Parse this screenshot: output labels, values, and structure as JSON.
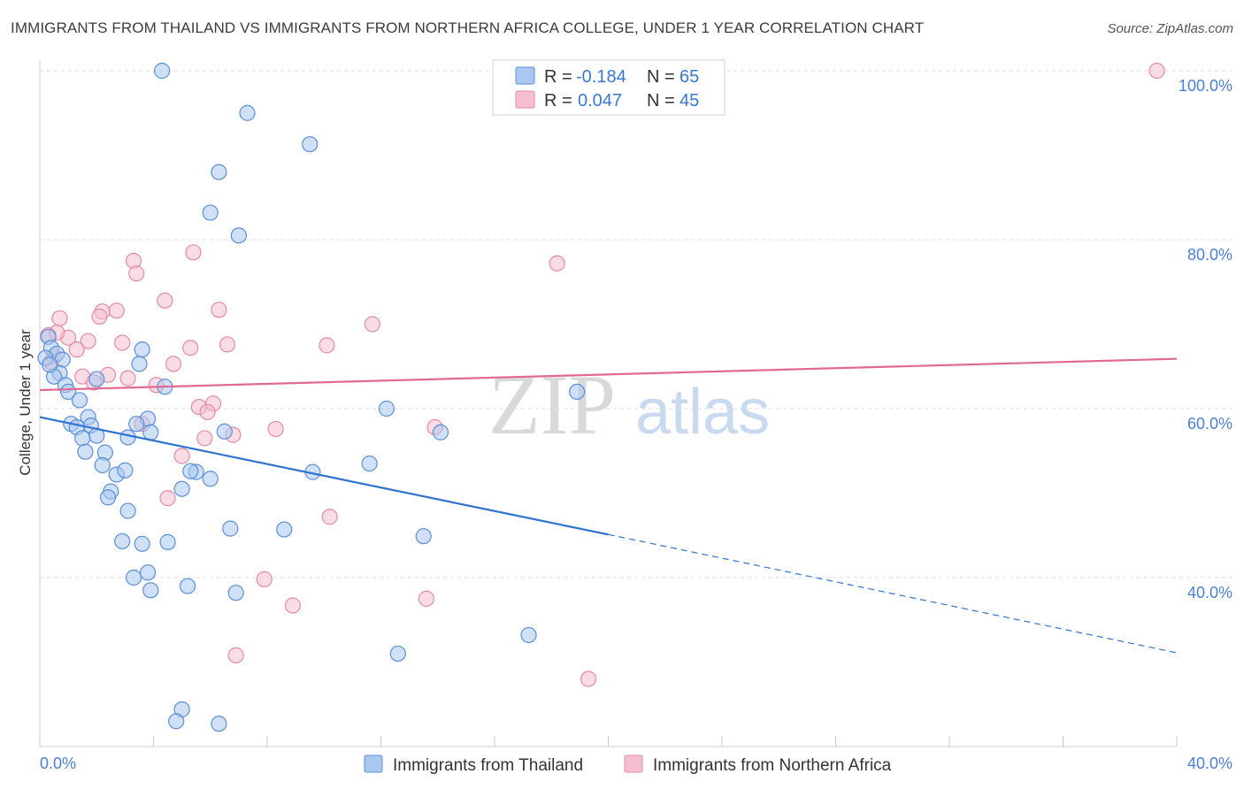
{
  "title": "IMMIGRANTS FROM THAILAND VS IMMIGRANTS FROM NORTHERN AFRICA COLLEGE, UNDER 1 YEAR CORRELATION CHART",
  "source": "Source: ZipAtlas.com",
  "watermark": {
    "zip": "ZIP",
    "atlas": "atlas"
  },
  "legend": {
    "rows": [
      {
        "r_label": "R =",
        "r_value": "-0.184",
        "n_label": "N =",
        "n_value": "65"
      },
      {
        "r_label": "R =",
        "r_value": "0.047",
        "n_label": "N =",
        "n_value": "45"
      }
    ]
  },
  "colors": {
    "thailand_fill": "#a9c8f0",
    "thailand_stroke": "#5b8fd6",
    "thailand_line": "#2f73d0",
    "nafrica_fill": "#f6bfd0",
    "nafrica_stroke": "#e48aa8",
    "nafrica_line": "#e06a93",
    "grid": "#dcdcdc",
    "axis_text": "#4a7fd1"
  },
  "chart_data": {
    "type": "scatter",
    "title": "IMMIGRANTS FROM THAILAND VS IMMIGRANTS FROM NORTHERN AFRICA COLLEGE, UNDER 1 YEAR CORRELATION CHART",
    "xlabel": "",
    "ylabel": "College, Under 1 year",
    "xlim": [
      0,
      40
    ],
    "ylim": [
      22,
      102
    ],
    "x_tick_labels": [
      "0.0%",
      "40.0%"
    ],
    "y_ticks": [
      40,
      60,
      80,
      100
    ],
    "y_tick_labels": [
      "40.0%",
      "60.0%",
      "80.0%",
      "100.0%"
    ],
    "grid": true,
    "legend_position": "top-center",
    "series": [
      {
        "name": "Immigrants from Thailand",
        "color": "#a9c8f0",
        "trend": {
          "x": [
            0,
            20
          ],
          "y": [
            59.0,
            45.1
          ],
          "dashed_to": [
            40,
            31.1
          ]
        },
        "points": [
          [
            4.3,
            100.0
          ],
          [
            7.3,
            95.0
          ],
          [
            9.5,
            91.3
          ],
          [
            6.3,
            88.0
          ],
          [
            6.0,
            83.2
          ],
          [
            7.0,
            80.5
          ],
          [
            0.3,
            68.5
          ],
          [
            0.4,
            67.2
          ],
          [
            0.6,
            66.5
          ],
          [
            0.8,
            65.8
          ],
          [
            0.7,
            64.2
          ],
          [
            0.5,
            63.8
          ],
          [
            0.9,
            62.8
          ],
          [
            1.0,
            62.0
          ],
          [
            1.4,
            61.0
          ],
          [
            1.7,
            59.0
          ],
          [
            1.1,
            58.2
          ],
          [
            1.3,
            57.8
          ],
          [
            1.8,
            58.0
          ],
          [
            2.0,
            56.8
          ],
          [
            1.5,
            56.5
          ],
          [
            1.6,
            54.9
          ],
          [
            2.3,
            54.8
          ],
          [
            2.2,
            53.3
          ],
          [
            2.7,
            52.2
          ],
          [
            3.0,
            52.7
          ],
          [
            2.5,
            50.2
          ],
          [
            2.4,
            49.5
          ],
          [
            3.1,
            47.9
          ],
          [
            2.9,
            44.3
          ],
          [
            3.6,
            44.0
          ],
          [
            4.5,
            44.2
          ],
          [
            3.8,
            40.6
          ],
          [
            3.3,
            40.0
          ],
          [
            5.2,
            39.0
          ],
          [
            6.9,
            38.2
          ],
          [
            3.9,
            38.5
          ],
          [
            3.5,
            65.3
          ],
          [
            3.6,
            67.0
          ],
          [
            3.8,
            58.8
          ],
          [
            3.9,
            57.2
          ],
          [
            4.4,
            62.6
          ],
          [
            3.4,
            58.2
          ],
          [
            3.1,
            56.6
          ],
          [
            5.5,
            52.5
          ],
          [
            5.3,
            52.6
          ],
          [
            5.0,
            50.5
          ],
          [
            6.0,
            51.7
          ],
          [
            6.5,
            57.3
          ],
          [
            6.7,
            45.8
          ],
          [
            8.6,
            45.7
          ],
          [
            9.6,
            52.5
          ],
          [
            11.6,
            53.5
          ],
          [
            12.2,
            60.0
          ],
          [
            13.5,
            44.9
          ],
          [
            14.1,
            57.2
          ],
          [
            18.9,
            62.0
          ],
          [
            12.6,
            31.0
          ],
          [
            17.2,
            33.2
          ],
          [
            5.0,
            24.4
          ],
          [
            4.8,
            23.0
          ],
          [
            6.3,
            22.7
          ],
          [
            0.2,
            66.0
          ],
          [
            0.35,
            65.2
          ],
          [
            2.0,
            63.5
          ]
        ]
      },
      {
        "name": "Immigrants from Northern Africa",
        "color": "#f6bfd0",
        "trend": {
          "x": [
            0,
            40
          ],
          "y": [
            62.2,
            65.9
          ]
        },
        "points": [
          [
            39.3,
            100.0
          ],
          [
            5.4,
            78.5
          ],
          [
            3.3,
            77.5
          ],
          [
            3.4,
            76.0
          ],
          [
            18.2,
            77.2
          ],
          [
            4.4,
            72.8
          ],
          [
            2.2,
            71.5
          ],
          [
            2.7,
            71.6
          ],
          [
            6.3,
            71.7
          ],
          [
            2.1,
            70.9
          ],
          [
            0.7,
            70.7
          ],
          [
            11.7,
            70.0
          ],
          [
            0.3,
            68.7
          ],
          [
            1.0,
            68.4
          ],
          [
            1.7,
            68.0
          ],
          [
            2.9,
            67.8
          ],
          [
            6.6,
            67.6
          ],
          [
            10.1,
            67.5
          ],
          [
            5.3,
            67.2
          ],
          [
            1.3,
            67.0
          ],
          [
            0.5,
            66.2
          ],
          [
            4.7,
            65.3
          ],
          [
            2.4,
            64.0
          ],
          [
            1.5,
            63.8
          ],
          [
            3.1,
            63.6
          ],
          [
            1.9,
            63.1
          ],
          [
            4.1,
            62.8
          ],
          [
            5.6,
            60.2
          ],
          [
            6.1,
            60.6
          ],
          [
            5.9,
            59.6
          ],
          [
            3.6,
            58.2
          ],
          [
            8.3,
            57.6
          ],
          [
            13.9,
            57.8
          ],
          [
            6.8,
            56.9
          ],
          [
            5.8,
            56.5
          ],
          [
            5.0,
            54.4
          ],
          [
            4.5,
            49.4
          ],
          [
            10.2,
            47.2
          ],
          [
            7.9,
            39.8
          ],
          [
            8.9,
            36.7
          ],
          [
            13.6,
            37.5
          ],
          [
            6.9,
            30.8
          ],
          [
            19.3,
            28.0
          ],
          [
            0.4,
            65.5
          ],
          [
            0.6,
            69.0
          ]
        ]
      }
    ]
  },
  "bottom_legend": {
    "items": [
      "Immigrants from Thailand",
      "Immigrants from Northern Africa"
    ]
  }
}
